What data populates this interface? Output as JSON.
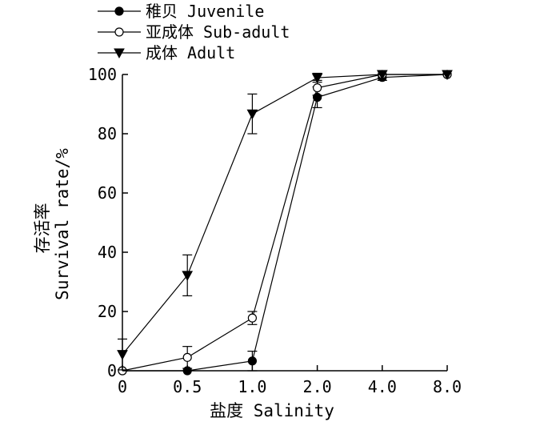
{
  "chart_data": {
    "type": "line",
    "categories": [
      "0",
      "0.5",
      "1.0",
      "2.0",
      "4.0",
      "8.0"
    ],
    "ylim": [
      0,
      100
    ],
    "yticks": [
      0,
      20,
      40,
      60,
      80,
      100
    ],
    "xlabel": "盐度 Salinity",
    "ylabel_cn": "存活率",
    "ylabel_en": "Survival rate/%",
    "legend_position": "top-left",
    "series": [
      {
        "name": "稚贝 Juvenile",
        "marker": "filled-circle",
        "values": [
          0,
          0,
          3.3,
          92.3,
          99,
          100
        ],
        "errors": [
          0,
          0,
          3.3,
          3.5,
          1,
          0
        ]
      },
      {
        "name": "亚成体 Sub-adult",
        "marker": "open-circle",
        "values": [
          0,
          4.5,
          17.8,
          95.5,
          100,
          100
        ],
        "errors": [
          0,
          3.7,
          2.2,
          2.5,
          0,
          0
        ]
      },
      {
        "name": "成体 Adult",
        "marker": "filled-triangle-down",
        "values": [
          5.5,
          32.2,
          86.7,
          98.9,
          100,
          100
        ],
        "errors": [
          5.2,
          6.9,
          6.7,
          1.5,
          0,
          0
        ]
      }
    ]
  }
}
